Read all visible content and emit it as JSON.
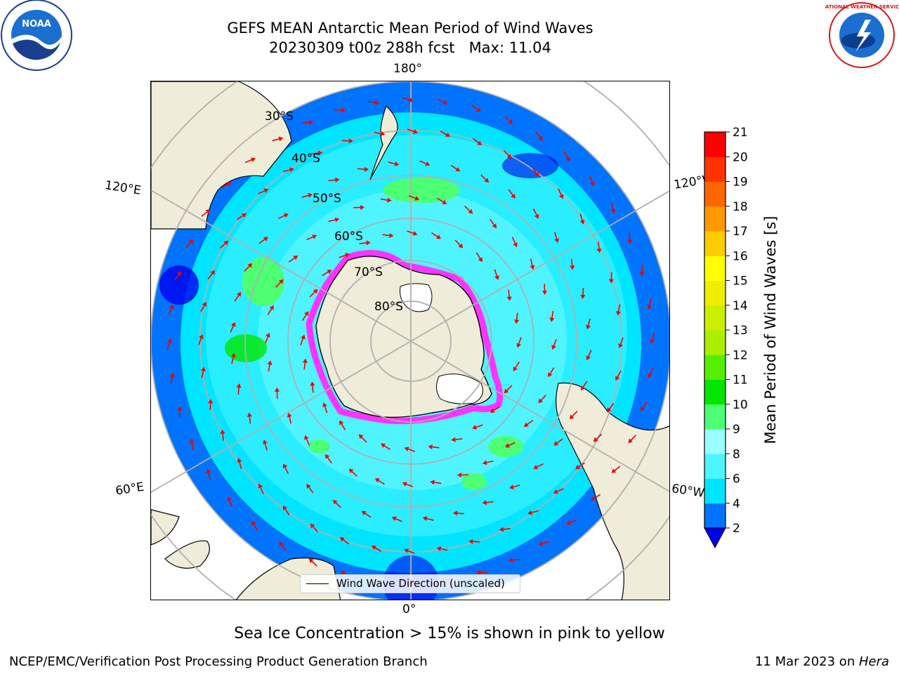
{
  "title": {
    "line1": "GEFS MEAN Antarctic Mean Period of Wind Waves",
    "line2": "20230309 t00z 288h fcst   Max: 11.04"
  },
  "map": {
    "projection": "south-polar-stereographic",
    "longitude_labels": {
      "top": "180°",
      "upper_left": "120°E",
      "upper_right": "120°W",
      "lower_left": "60°E",
      "lower_right": "60°W",
      "bottom": "0°"
    },
    "latitude_labels": [
      "30°S",
      "40°S",
      "50°S",
      "60°S",
      "70°S",
      "80°S"
    ],
    "legend_label": "Wind Wave Direction (unscaled)",
    "colors": {
      "land": "#efedd9",
      "ice_shelf": "#ffffff",
      "sea_ice": "#ff33ff",
      "arrow": "#ee0000",
      "graticule": "#b0b0b0"
    }
  },
  "colorbar": {
    "label": "Mean Period of Wind Waves [s]",
    "ticks": [
      "2",
      "4",
      "6",
      "8",
      "9",
      "10",
      "11",
      "12",
      "13",
      "14",
      "15",
      "16",
      "17",
      "18",
      "19",
      "20",
      "21"
    ],
    "bin_colors": [
      "#0073ff",
      "#00e5ff",
      "#4cf5ff",
      "#99ffff",
      "#4dff73",
      "#00e600",
      "#55ee00",
      "#aaee00",
      "#ccee00",
      "#eeee00",
      "#ffff00",
      "#ffcc00",
      "#ff9900",
      "#ff6600",
      "#ff3300",
      "#ff0000"
    ],
    "under_color": "#0000ee"
  },
  "notes": {
    "sea_ice": "Sea Ice Concentration > 15% is shown in pink to yellow"
  },
  "footer": {
    "left": "NCEP/EMC/Verification Post Processing Product Generation Branch",
    "right_date": "11 Mar 2023 on ",
    "right_machine": "Hera"
  },
  "logos": {
    "left_text": "NOAA",
    "right_text": "NATIONAL WEATHER SERVICE"
  }
}
